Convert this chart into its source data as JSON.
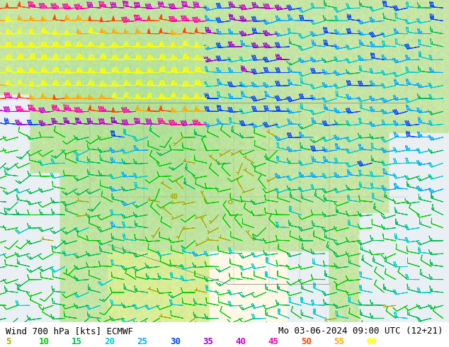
{
  "title_left": "Wind 700 hPa [kts] ECMWF",
  "title_right": "Mo 03-06-2024 09:00 UTC (12+21)",
  "legend_values": [
    "5",
    "10",
    "15",
    "20",
    "25",
    "30",
    "35",
    "40",
    "45",
    "50",
    "55",
    "60"
  ],
  "legend_colors": [
    "#aaaa00",
    "#00cc00",
    "#00bb55",
    "#00cccc",
    "#00aaff",
    "#0044ff",
    "#9900cc",
    "#cc00cc",
    "#ff00aa",
    "#ff4400",
    "#ffaa00",
    "#ffff00"
  ],
  "bg_color": "#c8e8b0",
  "fig_width": 6.34,
  "fig_height": 4.9,
  "dpi": 100,
  "text_color": "#000000",
  "bottom_bar_color": "#ffffff",
  "title_fontsize": 9,
  "legend_fontsize": 9,
  "speed_thresholds": [
    5,
    10,
    15,
    20,
    25,
    30,
    35,
    40,
    45,
    50,
    55,
    60
  ],
  "speed_colors": [
    "#aaaa00",
    "#00cc00",
    "#00bb55",
    "#00cccc",
    "#00aaff",
    "#0044ff",
    "#9900cc",
    "#cc00cc",
    "#ff00aa",
    "#ff4400",
    "#ffaa00",
    "#ffff00"
  ]
}
